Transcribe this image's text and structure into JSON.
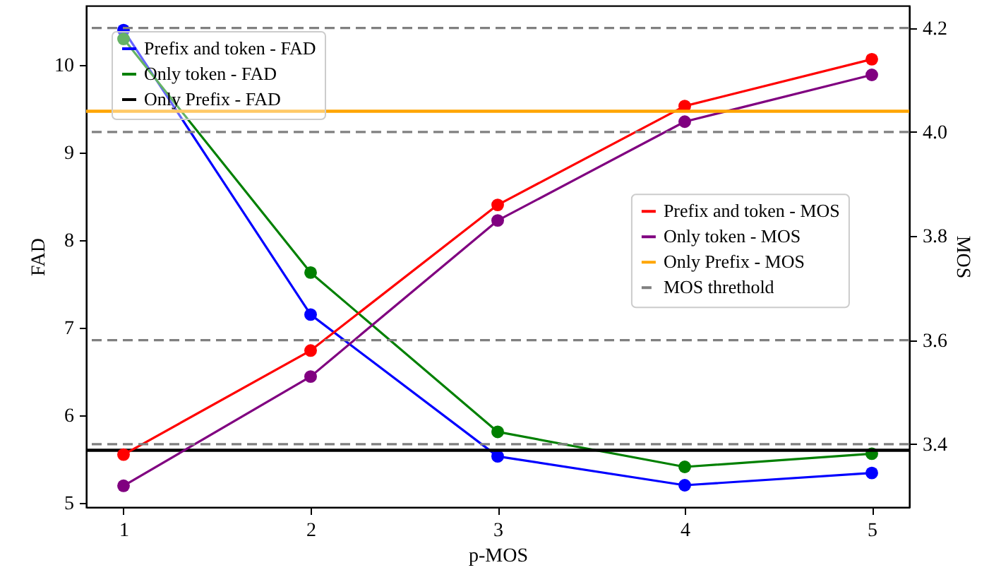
{
  "chart_data": {
    "type": "line",
    "xlabel": "p-MOS",
    "ylabel": "FAD",
    "y2label": "MOS",
    "x": [
      1,
      2,
      3,
      4,
      5
    ],
    "xlim": [
      0.8,
      5.2
    ],
    "xticks": [
      1,
      2,
      3,
      4,
      5
    ],
    "ylim": [
      4.95,
      10.68
    ],
    "yticks": [
      5,
      6,
      7,
      8,
      9,
      10
    ],
    "y2lim": [
      3.279,
      4.243
    ],
    "y2ticks": [
      3.4,
      3.6,
      3.8,
      {
        "value": 4,
        "label": "4.0"
      },
      4.2
    ],
    "marker": "circle",
    "legend": "top left",
    "series": [
      {
        "name": "Prefix and token - FAD",
        "color": "#0000ff",
        "values": [
          10.4,
          7.15,
          5.53,
          5.2,
          5.34
        ]
      },
      {
        "name": "Only token - FAD",
        "color": "#008000",
        "values": [
          10.3,
          7.63,
          5.81,
          5.41,
          5.56
        ]
      },
      {
        "name": "Prefix and token - MOS",
        "color": "#ff0000",
        "axis": "y2",
        "values": [
          3.38,
          3.58,
          3.86,
          4.05,
          4.14
        ]
      },
      {
        "name": "Only token - MOS",
        "color": "#800080",
        "axis": "y2",
        "values": [
          3.32,
          3.53,
          3.83,
          4.02,
          4.11
        ]
      }
    ],
    "ref_lines": [
      {
        "axis": "y",
        "value": 5.6,
        "label": "Only Prefix - FAD",
        "color": "#000000",
        "line_style": "solid"
      },
      {
        "axis": "y2",
        "value": 4.04,
        "label": "Only Prefix - MOS",
        "color": "#ffa500",
        "line_style": "solid"
      },
      {
        "axis": "y2",
        "value": 4.2,
        "label": "MOS threthold",
        "color": "#808080",
        "line_style": "dashed"
      },
      {
        "axis": "y2",
        "value": 4.0,
        "color": "#808080",
        "line_style": "dashed"
      },
      {
        "axis": "y2",
        "value": 3.6,
        "color": "#808080",
        "line_style": "dashed"
      },
      {
        "axis": "y2",
        "value": 3.4,
        "color": "#808080",
        "line_style": "dashed"
      }
    ]
  }
}
